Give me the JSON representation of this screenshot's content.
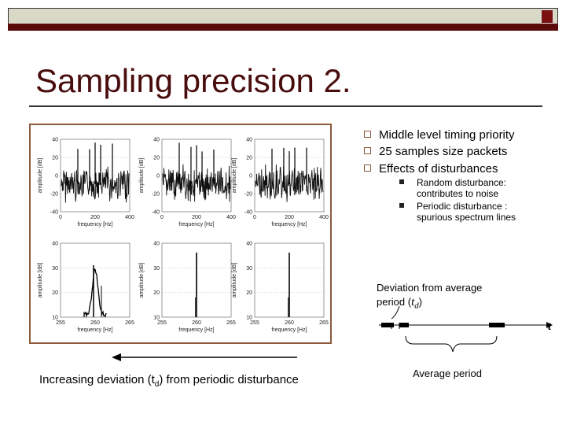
{
  "slide": {
    "title": "Sampling precision 2."
  },
  "bullets": [
    "Middle level timing priority",
    "25 samples size packets",
    "Effects of disturbances"
  ],
  "sub_bullets": [
    {
      "line1": "Random disturbance:",
      "line2": "contributes to noise"
    },
    {
      "line1": "Periodic disturbance :",
      "line2": "spurious spectrum lines"
    }
  ],
  "timing": {
    "deviation_line1": "Deviation from average",
    "deviation_line2_prefix": "period (",
    "deviation_symbol": "t",
    "deviation_subscript": "d",
    "deviation_suffix": ")",
    "axis_label": "t",
    "average_period": "Average period"
  },
  "bottom": {
    "prefix": "Increasing deviation (t",
    "subscript": "d",
    "suffix": ") from periodic disturbance"
  },
  "figure": {
    "top_row": {
      "ylabel": "amplitude [dB]",
      "xlabel": "frequency [Hz]",
      "yticks": [
        "40",
        "20",
        "0",
        "-20",
        "-40"
      ],
      "xticks": [
        "0",
        "200",
        "400"
      ]
    },
    "bottom_row": {
      "ylabel": "amplitude [dB]",
      "xlabel": "frequency [Hz]",
      "yticks": [
        "40",
        "30",
        "20",
        "10"
      ],
      "xticks": [
        "255",
        "260",
        "265"
      ]
    }
  },
  "colors": {
    "title": "#4a0d0d",
    "frame": "#8b5a3c",
    "bar_red": "#5c0b0b"
  }
}
